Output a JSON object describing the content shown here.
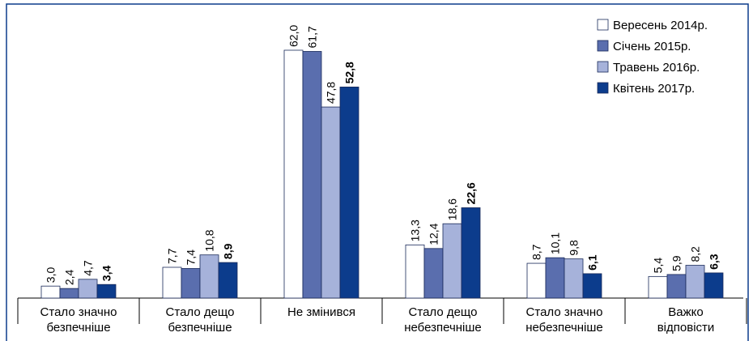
{
  "chart_data": {
    "type": "bar",
    "categories": [
      [
        "Стало значно",
        "безпечніше"
      ],
      [
        "Стало дещо",
        "безпечніше"
      ],
      [
        "Не змінився"
      ],
      [
        "Стало дещо",
        "небезпечніше"
      ],
      [
        "Стало значно",
        "небезпечніше"
      ],
      [
        "Важко",
        "відповісти"
      ]
    ],
    "series": [
      {
        "name": "Вересень 2014р.",
        "color": "#ffffff",
        "values": [
          3.0,
          7.7,
          62.0,
          13.3,
          8.7,
          5.4
        ],
        "value_labels": [
          "3,0",
          "7,7",
          "62,0",
          "13,3",
          "8,7",
          "5,4"
        ]
      },
      {
        "name": "Січень 2015р.",
        "color": "#5a6eae",
        "values": [
          2.4,
          7.4,
          61.7,
          12.4,
          10.1,
          5.9
        ],
        "value_labels": [
          "2,4",
          "7,4",
          "61,7",
          "12,4",
          "10,1",
          "5,9"
        ]
      },
      {
        "name": "Травень 2016р.",
        "color": "#a6b2da",
        "values": [
          4.7,
          10.8,
          47.8,
          18.6,
          9.8,
          8.2
        ],
        "value_labels": [
          "4,7",
          "10,8",
          "47,8",
          "18,6",
          "9,8",
          "8,2"
        ]
      },
      {
        "name": "Квітень 2017р.",
        "color": "#0c3c8c",
        "values": [
          3.4,
          8.9,
          52.8,
          22.6,
          6.1,
          6.3
        ],
        "value_labels": [
          "3,4",
          "8,9",
          "52,8",
          "22,6",
          "6,1",
          "6,3"
        ]
      }
    ],
    "legend": "top-right"
  }
}
